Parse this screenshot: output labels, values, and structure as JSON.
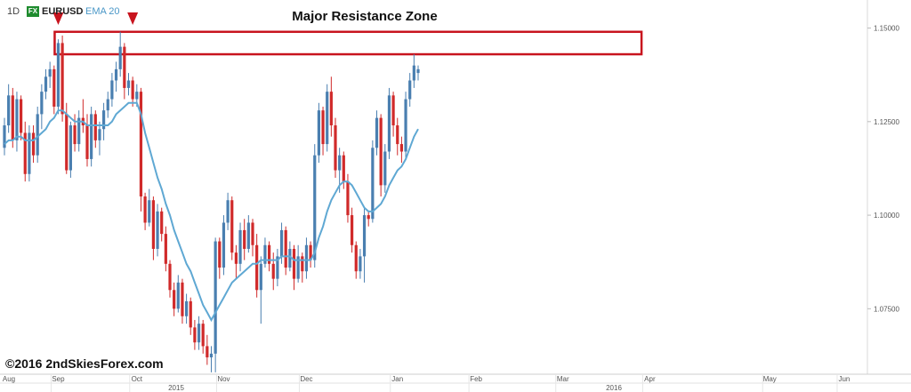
{
  "header": {
    "timeframe": "1D",
    "fx_badge": "FX",
    "symbol": "EURUSD",
    "indicator": "EMA 20"
  },
  "watermark": "©2016 2ndSkiesForex.com",
  "chart_data": {
    "type": "candlestick",
    "title": "Major Resistance Zone",
    "ylim": [
      1.0575,
      1.1575
    ],
    "y_ticks": [
      "1.15000",
      "1.12500",
      "1.10000",
      "1.07500"
    ],
    "x_month_labels": [
      "Aug",
      "Sep",
      "Oct",
      "Nov",
      "Dec",
      "Jan",
      "Feb",
      "Mar",
      "Apr",
      "May",
      "Jun"
    ],
    "x_year_labels": [
      "2015",
      "2016"
    ],
    "resistance_zone": [
      1.143,
      1.149
    ],
    "colors": {
      "up": "#4a7fb0",
      "down": "#d02a2a",
      "ema": "#5fa8d3",
      "zone": "#c8141e",
      "arrow": "#c8141e"
    },
    "series": [
      {
        "label": "EURUSD",
        "ohlc": [
          [
            1.118,
            1.126,
            1.116,
            1.124
          ],
          [
            1.124,
            1.135,
            1.122,
            1.132
          ],
          [
            1.132,
            1.134,
            1.118,
            1.12
          ],
          [
            1.12,
            1.133,
            1.117,
            1.131
          ],
          [
            1.131,
            1.132,
            1.12,
            1.122
          ],
          [
            1.122,
            1.125,
            1.109,
            1.111
          ],
          [
            1.111,
            1.124,
            1.109,
            1.122
          ],
          [
            1.122,
            1.124,
            1.114,
            1.116
          ],
          [
            1.116,
            1.129,
            1.114,
            1.127
          ],
          [
            1.127,
            1.135,
            1.123,
            1.133
          ],
          [
            1.133,
            1.139,
            1.131,
            1.137
          ],
          [
            1.137,
            1.141,
            1.134,
            1.139
          ],
          [
            1.139,
            1.14,
            1.127,
            1.129
          ],
          [
            1.129,
            1.147,
            1.127,
            1.146
          ],
          [
            1.146,
            1.148,
            1.125,
            1.127
          ],
          [
            1.127,
            1.13,
            1.111,
            1.112
          ],
          [
            1.112,
            1.125,
            1.11,
            1.124
          ],
          [
            1.124,
            1.127,
            1.117,
            1.119
          ],
          [
            1.119,
            1.128,
            1.117,
            1.126
          ],
          [
            1.126,
            1.131,
            1.122,
            1.124
          ],
          [
            1.124,
            1.127,
            1.113,
            1.115
          ],
          [
            1.115,
            1.129,
            1.113,
            1.127
          ],
          [
            1.127,
            1.128,
            1.118,
            1.12
          ],
          [
            1.12,
            1.125,
            1.116,
            1.123
          ],
          [
            1.123,
            1.13,
            1.12,
            1.128
          ],
          [
            1.128,
            1.133,
            1.126,
            1.131
          ],
          [
            1.131,
            1.138,
            1.129,
            1.136
          ],
          [
            1.136,
            1.141,
            1.133,
            1.139
          ],
          [
            1.139,
            1.149,
            1.137,
            1.145
          ],
          [
            1.145,
            1.146,
            1.131,
            1.134
          ],
          [
            1.134,
            1.138,
            1.132,
            1.136
          ],
          [
            1.136,
            1.137,
            1.129,
            1.131
          ],
          [
            1.131,
            1.135,
            1.129,
            1.133
          ],
          [
            1.133,
            1.134,
            1.101,
            1.105
          ],
          [
            1.105,
            1.106,
            1.096,
            1.098
          ],
          [
            1.098,
            1.107,
            1.097,
            1.104
          ],
          [
            1.104,
            1.105,
            1.088,
            1.091
          ],
          [
            1.091,
            1.103,
            1.089,
            1.101
          ],
          [
            1.101,
            1.102,
            1.093,
            1.095
          ],
          [
            1.095,
            1.097,
            1.085,
            1.087
          ],
          [
            1.087,
            1.088,
            1.078,
            1.08
          ],
          [
            1.08,
            1.082,
            1.073,
            1.075
          ],
          [
            1.075,
            1.084,
            1.074,
            1.082
          ],
          [
            1.082,
            1.083,
            1.071,
            1.073
          ],
          [
            1.073,
            1.079,
            1.071,
            1.077
          ],
          [
            1.077,
            1.078,
            1.068,
            1.07
          ],
          [
            1.07,
            1.072,
            1.064,
            1.066
          ],
          [
            1.066,
            1.073,
            1.064,
            1.071
          ],
          [
            1.071,
            1.072,
            1.063,
            1.065
          ],
          [
            1.065,
            1.068,
            1.06,
            1.062
          ],
          [
            1.062,
            1.065,
            1.058,
            1.063
          ],
          [
            1.063,
            1.094,
            1.058,
            1.093
          ],
          [
            1.093,
            1.094,
            1.083,
            1.086
          ],
          [
            1.086,
            1.1,
            1.084,
            1.098
          ],
          [
            1.098,
            1.106,
            1.096,
            1.104
          ],
          [
            1.104,
            1.105,
            1.088,
            1.09
          ],
          [
            1.09,
            1.092,
            1.083,
            1.087
          ],
          [
            1.087,
            1.098,
            1.085,
            1.096
          ],
          [
            1.096,
            1.099,
            1.088,
            1.091
          ],
          [
            1.091,
            1.1,
            1.09,
            1.098
          ],
          [
            1.098,
            1.099,
            1.089,
            1.092
          ],
          [
            1.092,
            1.095,
            1.078,
            1.08
          ],
          [
            1.08,
            1.089,
            1.071,
            1.087
          ],
          [
            1.087,
            1.094,
            1.086,
            1.092
          ],
          [
            1.092,
            1.093,
            1.085,
            1.087
          ],
          [
            1.087,
            1.09,
            1.08,
            1.083
          ],
          [
            1.083,
            1.091,
            1.081,
            1.089
          ],
          [
            1.089,
            1.098,
            1.087,
            1.096
          ],
          [
            1.096,
            1.097,
            1.084,
            1.086
          ],
          [
            1.086,
            1.093,
            1.085,
            1.091
          ],
          [
            1.091,
            1.092,
            1.08,
            1.083
          ],
          [
            1.083,
            1.092,
            1.082,
            1.089
          ],
          [
            1.089,
            1.09,
            1.082,
            1.085
          ],
          [
            1.085,
            1.094,
            1.083,
            1.092
          ],
          [
            1.092,
            1.093,
            1.086,
            1.088
          ],
          [
            1.088,
            1.119,
            1.086,
            1.116
          ],
          [
            1.116,
            1.13,
            1.114,
            1.128
          ],
          [
            1.128,
            1.129,
            1.116,
            1.119
          ],
          [
            1.119,
            1.135,
            1.117,
            1.133
          ],
          [
            1.133,
            1.137,
            1.121,
            1.124
          ],
          [
            1.124,
            1.126,
            1.11,
            1.112
          ],
          [
            1.112,
            1.118,
            1.106,
            1.116
          ],
          [
            1.116,
            1.117,
            1.107,
            1.109
          ],
          [
            1.109,
            1.111,
            1.098,
            1.1
          ],
          [
            1.1,
            1.102,
            1.09,
            1.092
          ],
          [
            1.092,
            1.093,
            1.083,
            1.085
          ],
          [
            1.085,
            1.091,
            1.083,
            1.089
          ],
          [
            1.089,
            1.102,
            1.082,
            1.1
          ],
          [
            1.1,
            1.101,
            1.097,
            1.099
          ],
          [
            1.099,
            1.12,
            1.098,
            1.118
          ],
          [
            1.118,
            1.128,
            1.116,
            1.126
          ],
          [
            1.126,
            1.127,
            1.105,
            1.108
          ],
          [
            1.108,
            1.119,
            1.106,
            1.117
          ],
          [
            1.117,
            1.134,
            1.115,
            1.132
          ],
          [
            1.132,
            1.133,
            1.121,
            1.124
          ],
          [
            1.124,
            1.126,
            1.116,
            1.119
          ],
          [
            1.119,
            1.121,
            1.114,
            1.117
          ],
          [
            1.117,
            1.133,
            1.115,
            1.131
          ],
          [
            1.131,
            1.138,
            1.129,
            1.136
          ],
          [
            1.136,
            1.143,
            1.134,
            1.14
          ],
          [
            1.138,
            1.14,
            1.136,
            1.139
          ]
        ]
      },
      {
        "name": "EMA 20",
        "values": [
          1.119,
          1.12,
          1.12,
          1.121,
          1.121,
          1.12,
          1.12,
          1.12,
          1.121,
          1.122,
          1.123,
          1.125,
          1.126,
          1.128,
          1.128,
          1.127,
          1.126,
          1.125,
          1.125,
          1.125,
          1.124,
          1.124,
          1.124,
          1.124,
          1.124,
          1.124,
          1.125,
          1.127,
          1.128,
          1.129,
          1.13,
          1.13,
          1.13,
          1.127,
          1.122,
          1.118,
          1.114,
          1.11,
          1.107,
          1.103,
          1.1,
          1.096,
          1.093,
          1.09,
          1.087,
          1.085,
          1.082,
          1.079,
          1.076,
          1.074,
          1.072,
          1.074,
          1.076,
          1.078,
          1.08,
          1.082,
          1.083,
          1.084,
          1.085,
          1.086,
          1.087,
          1.087,
          1.088,
          1.088,
          1.088,
          1.088,
          1.088,
          1.089,
          1.089,
          1.089,
          1.088,
          1.088,
          1.088,
          1.088,
          1.088,
          1.09,
          1.094,
          1.097,
          1.101,
          1.104,
          1.106,
          1.108,
          1.109,
          1.109,
          1.108,
          1.106,
          1.104,
          1.102,
          1.101,
          1.101,
          1.102,
          1.103,
          1.105,
          1.108,
          1.11,
          1.112,
          1.113,
          1.115,
          1.118,
          1.121,
          1.123
        ]
      }
    ],
    "x_month_index": {
      "Aug": 0,
      "Sep": 13,
      "Oct": 32,
      "Nov": 53,
      "Dec": 73,
      "Jan": 95,
      "Feb": 114,
      "Mar": 135,
      "Apr": 156,
      "May": 185,
      "Jun": 203
    },
    "resistance_zone_extent": [
      13,
      154
    ],
    "arrows_at_index": [
      13,
      31
    ]
  }
}
